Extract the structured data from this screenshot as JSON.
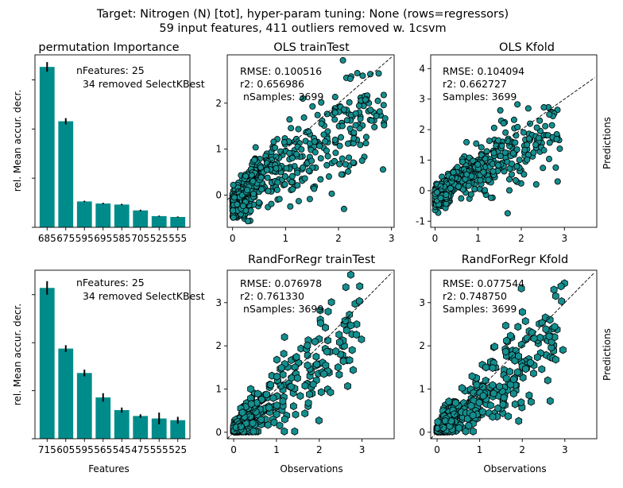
{
  "figure": {
    "suptitle_line1": "Target: Nitrogen (N) [tot], hyper-param tuning: None (rows=regressors)",
    "suptitle_line2": "59 input features, 411 outliers removed w. 1csvm"
  },
  "colors": {
    "teal": "#008b8b",
    "marker_fill": "#148f8f",
    "edge": "#000000"
  },
  "chart_data": [
    {
      "id": "perm-top",
      "type": "bar",
      "title": "permutation Importance",
      "ylabel": "rel. Mean accur. decr.",
      "xlabel": "",
      "categories": [
        "685",
        "675",
        "595",
        "695",
        "585",
        "705",
        "525",
        "555"
      ],
      "values": [
        0.93,
        0.615,
        0.15,
        0.138,
        0.132,
        0.098,
        0.065,
        0.06
      ],
      "errors": [
        0.028,
        0.018,
        0.004,
        0.004,
        0.004,
        0.004,
        0.003,
        0.003
      ],
      "ylim": [
        0,
        1.0
      ],
      "annotation_line1": "nFeatures: 25",
      "annotation_line2": "  34 removed SelectKBest"
    },
    {
      "id": "ols-traintest",
      "type": "scatter",
      "marker": "circle",
      "title": "OLS trainTest",
      "xlim": [
        -0.1,
        3.05
      ],
      "ylim": [
        -0.7,
        3.05
      ],
      "xticks": [
        0,
        1,
        2,
        3
      ],
      "yticks": [
        0,
        1,
        2
      ],
      "annotation_line1": "RMSE: 0.100516",
      "annotation_line2": "r2: 0.656986",
      "annotation_line3": " nSamples: 3699",
      "x_axis_label": "",
      "right_label": ""
    },
    {
      "id": "ols-kfold",
      "type": "scatter",
      "marker": "circle",
      "title": "OLS Kfold",
      "xlim": [
        -0.1,
        3.75
      ],
      "ylim": [
        -1.2,
        4.45
      ],
      "xticks": [
        0,
        1,
        2,
        3
      ],
      "yticks": [
        -1,
        0,
        1,
        2,
        3,
        4
      ],
      "annotation_line1": "RMSE: 0.104094",
      "annotation_line2": "r2: 0.662727",
      "annotation_line3": "Samples: 3699",
      "x_axis_label": "",
      "right_label": "Predictions"
    },
    {
      "id": "perm-bottom",
      "type": "bar",
      "title": "",
      "ylabel": "rel. Mean accur. decr.",
      "xlabel": "Features",
      "categories": [
        "715",
        "605",
        "595",
        "565",
        "545",
        "475",
        "555",
        "525"
      ],
      "values": [
        0.895,
        0.535,
        0.39,
        0.245,
        0.17,
        0.135,
        0.12,
        0.11
      ],
      "errors": [
        0.04,
        0.02,
        0.02,
        0.025,
        0.015,
        0.01,
        0.035,
        0.02
      ],
      "ylim": [
        0,
        1.0
      ],
      "annotation_line1": "nFeatures: 25",
      "annotation_line2": "  34 removed SelectKBest"
    },
    {
      "id": "rf-traintest",
      "type": "scatter",
      "marker": "hexagon",
      "title": "RandForRegr trainTest",
      "xlim": [
        -0.15,
        3.75
      ],
      "ylim": [
        -0.15,
        3.75
      ],
      "xticks": [
        0,
        1,
        2,
        3
      ],
      "yticks": [
        0,
        1,
        2,
        3
      ],
      "annotation_line1": "RMSE: 0.076978",
      "annotation_line2": "r2: 0.761330",
      "annotation_line3": " nSamples: 3699",
      "x_axis_label": "Observations",
      "right_label": ""
    },
    {
      "id": "rf-kfold",
      "type": "scatter",
      "marker": "hexagon",
      "title": "RandForRegr Kfold",
      "xlim": [
        -0.15,
        3.75
      ],
      "ylim": [
        -0.15,
        3.75
      ],
      "xticks": [
        0,
        1,
        2,
        3
      ],
      "yticks": [
        0,
        1,
        2,
        3
      ],
      "annotation_line1": "RMSE: 0.077544",
      "annotation_line2": "r2: 0.748750",
      "annotation_line3": "Samples: 3699",
      "x_axis_label": "Observations",
      "right_label": "Predictions"
    }
  ]
}
